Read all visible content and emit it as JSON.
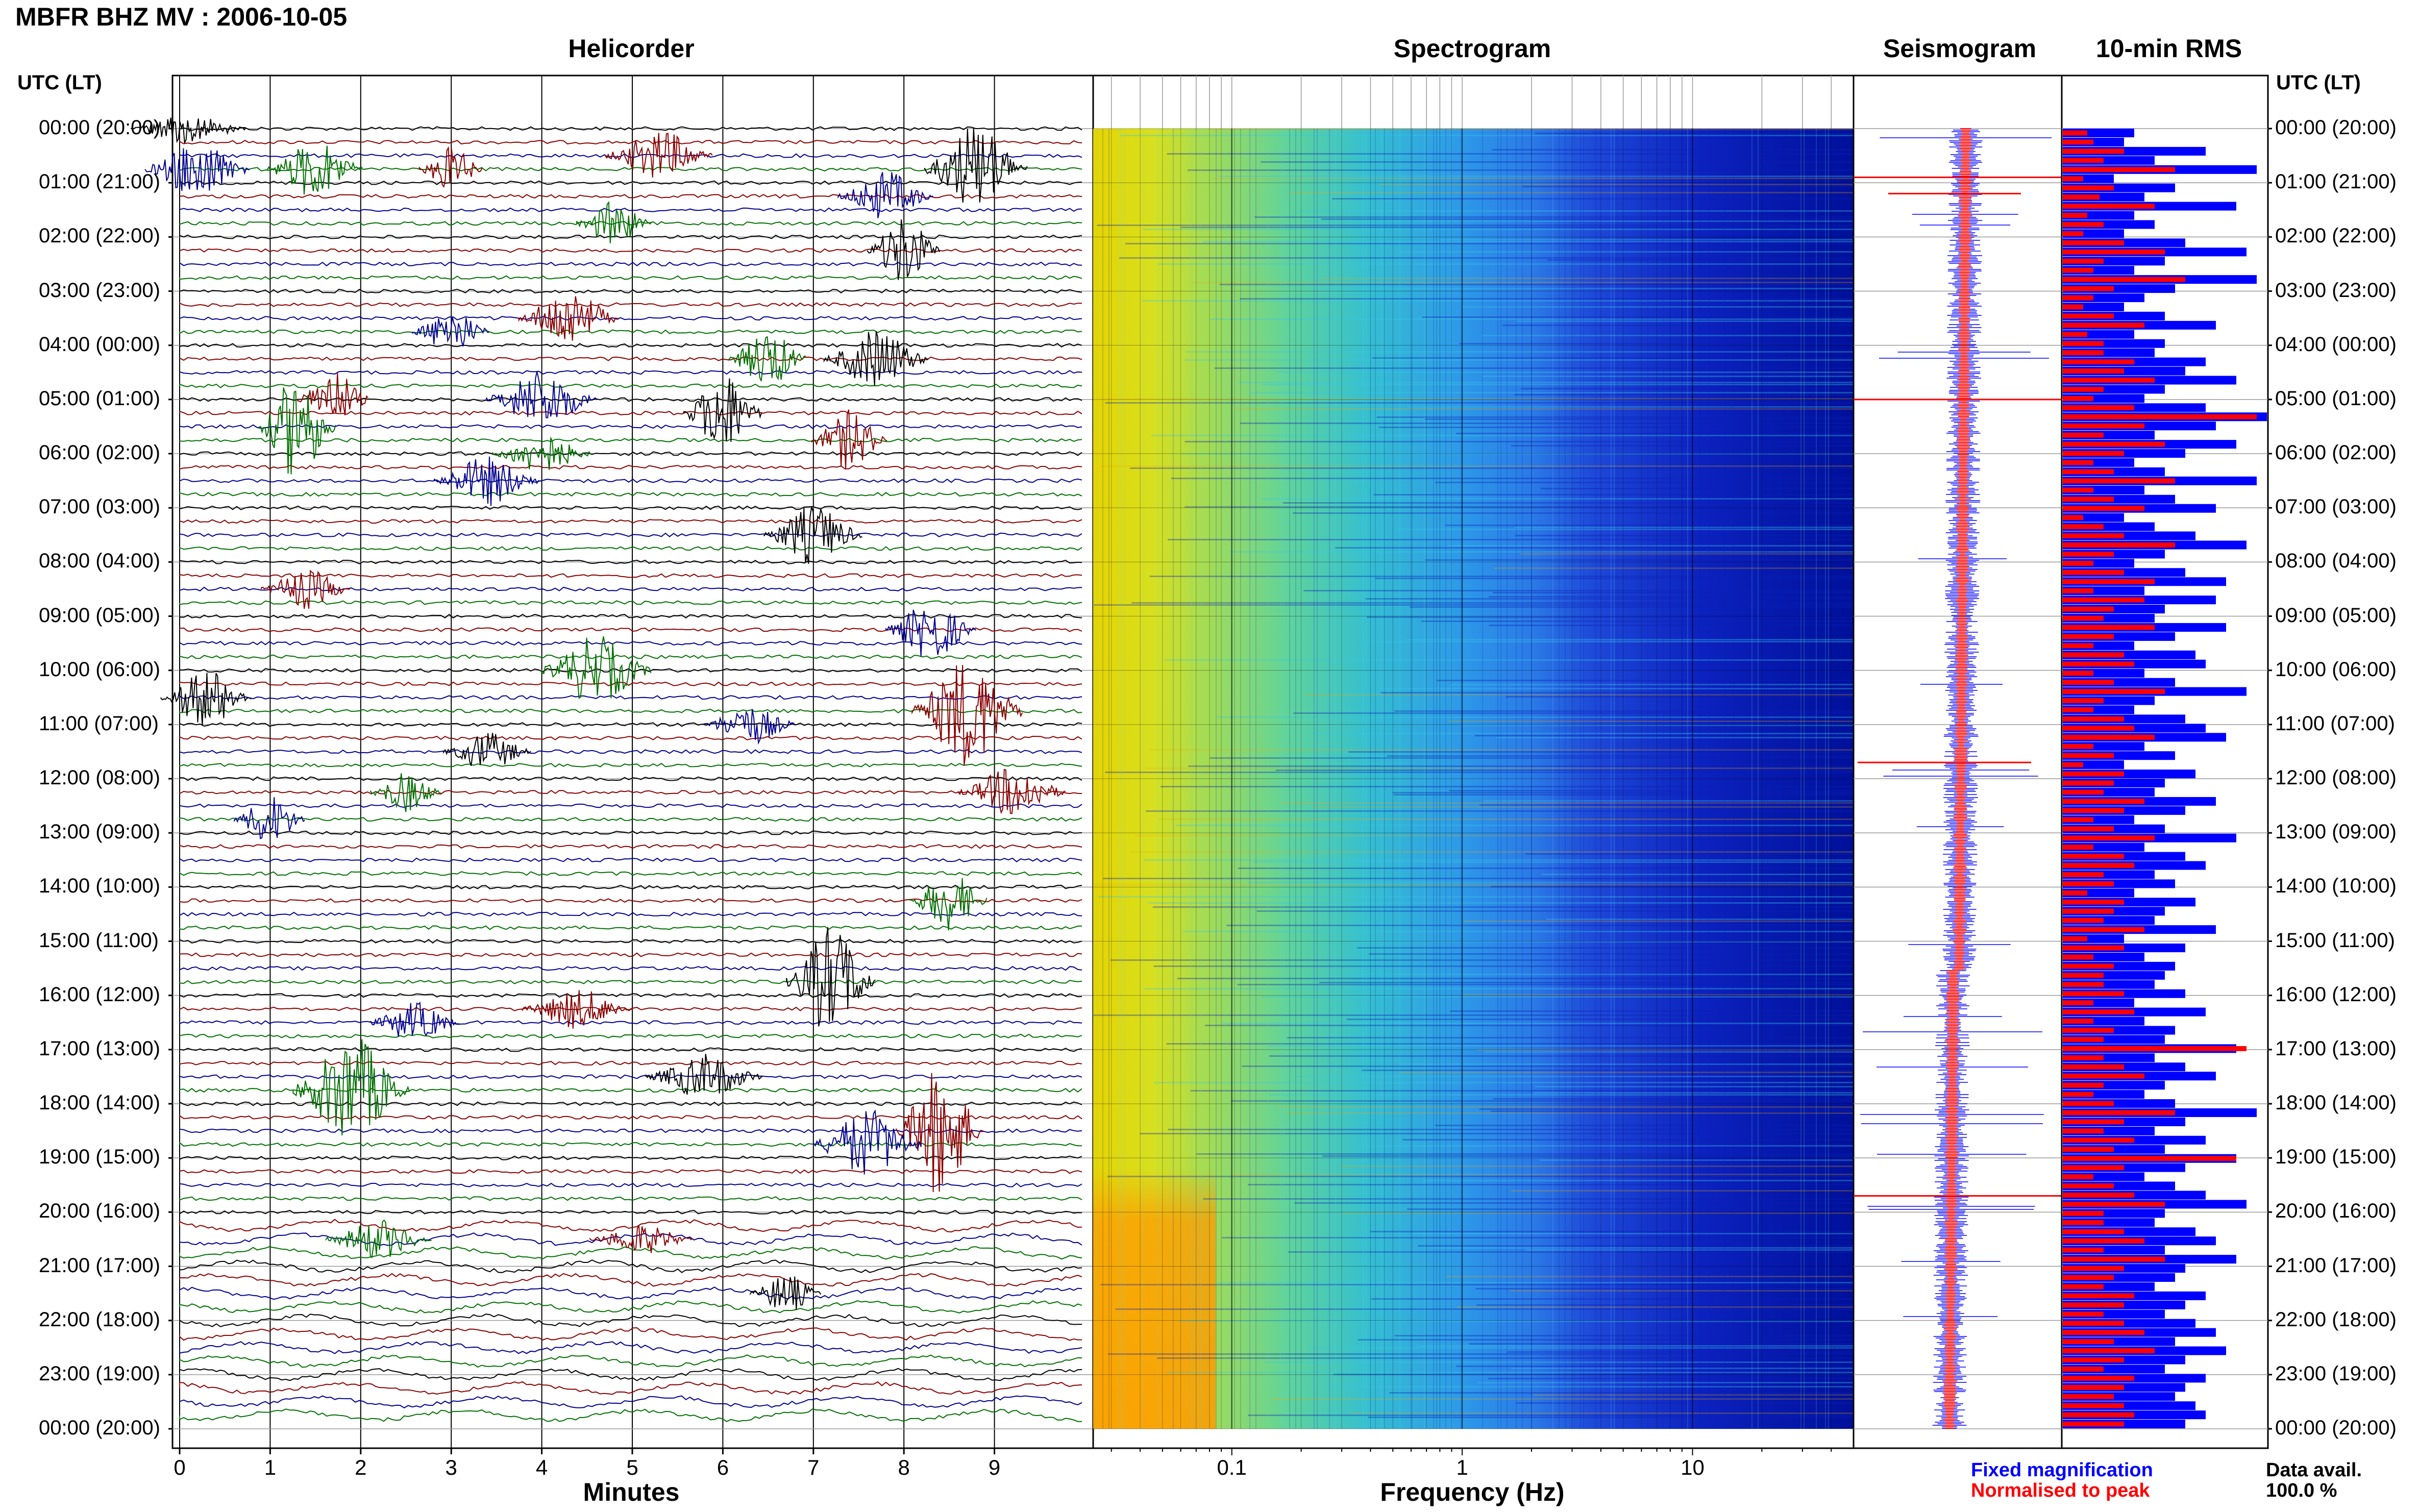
{
  "title": "MBFR BHZ MV : 2006-10-05",
  "panels": {
    "helicorder": "Helicorder",
    "spectrogram": "Spectrogram",
    "seismogram": "Seismogram",
    "rms": "10-min RMS"
  },
  "time_axis_label": "UTC (LT)",
  "time_labels": [
    "00:00 (20:00)",
    "01:00 (21:00)",
    "02:00 (22:00)",
    "03:00 (23:00)",
    "04:00 (00:00)",
    "05:00 (01:00)",
    "06:00 (02:00)",
    "07:00 (03:00)",
    "08:00 (04:00)",
    "09:00 (05:00)",
    "10:00 (06:00)",
    "11:00 (07:00)",
    "12:00 (08:00)",
    "13:00 (09:00)",
    "14:00 (10:00)",
    "15:00 (11:00)",
    "16:00 (12:00)",
    "17:00 (13:00)",
    "18:00 (14:00)",
    "19:00 (15:00)",
    "20:00 (16:00)",
    "21:00 (17:00)",
    "22:00 (18:00)",
    "23:00 (19:00)",
    "00:00 (20:00)"
  ],
  "helicorder_x": {
    "label": "Minutes",
    "ticks": [
      "0",
      "1",
      "2",
      "3",
      "4",
      "5",
      "6",
      "7",
      "8",
      "9"
    ]
  },
  "spectrogram_x": {
    "label": "Frequency (Hz)",
    "ticks": [
      "0.1",
      "1",
      "10"
    ],
    "scale": "log"
  },
  "legend": {
    "fixed": "Fixed magnification",
    "normalised": "Normalised to peak"
  },
  "data_availability": {
    "label": "Data avail.",
    "value": "100.0 %"
  },
  "colors": {
    "trace_cycle": [
      "#000000",
      "#8b0000",
      "#000090",
      "#007000"
    ],
    "fixed": "#0000ff",
    "normalised": "#ff0000",
    "grid": "#9a9a9a"
  },
  "chart_data": {
    "type": "bar",
    "title": "10-min RMS",
    "series": [
      {
        "name": "Fixed magnification",
        "values": [
          0.35,
          0.3,
          0.7,
          0.45,
          0.95,
          0.25,
          0.55,
          0.4,
          0.85,
          0.35,
          0.45,
          0.3,
          0.6,
          0.9,
          0.5,
          0.35,
          0.95,
          0.55,
          0.4,
          0.3,
          0.5,
          0.75,
          0.35,
          0.5,
          0.45,
          0.7,
          0.6,
          0.85,
          0.5,
          0.4,
          0.7,
          1.0,
          0.75,
          0.45,
          0.85,
          0.6,
          0.35,
          0.5,
          0.95,
          0.4,
          0.55,
          0.75,
          0.3,
          0.45,
          0.65,
          0.9,
          0.5,
          0.35,
          0.6,
          0.8,
          0.4,
          0.75,
          0.5,
          0.45,
          0.8,
          0.55,
          0.35,
          0.65,
          0.7,
          0.4,
          0.55,
          0.9,
          0.45,
          0.35,
          0.6,
          0.7,
          0.8,
          0.4,
          0.55,
          0.3,
          0.65,
          0.5,
          0.45,
          0.75,
          0.6,
          0.35,
          0.5,
          0.85,
          0.4,
          0.6,
          0.7,
          0.45,
          0.55,
          0.35,
          0.65,
          0.5,
          0.45,
          0.75,
          0.3,
          0.6,
          0.4,
          0.55,
          0.5,
          0.45,
          0.6,
          0.35,
          0.7,
          0.4,
          0.55,
          0.5,
          0.85,
          0.45,
          0.6,
          0.75,
          0.5,
          0.4,
          0.55,
          0.95,
          0.6,
          0.45,
          0.7,
          0.5,
          0.85,
          0.6,
          0.4,
          0.55,
          0.7,
          0.9,
          0.5,
          0.45,
          0.65,
          0.75,
          0.5,
          0.85,
          0.6,
          0.55,
          0.45,
          0.7,
          0.6,
          0.5,
          0.65,
          0.75,
          0.55,
          0.8,
          0.6,
          0.5,
          0.7,
          0.6,
          0.55,
          0.65,
          0.7,
          0.6
        ],
        "color": "#0000ff"
      },
      {
        "name": "Normalised to peak",
        "values": [
          0.12,
          0.15,
          0.3,
          0.2,
          0.55,
          0.1,
          0.25,
          0.18,
          0.45,
          0.12,
          0.2,
          0.1,
          0.3,
          0.5,
          0.2,
          0.15,
          0.6,
          0.25,
          0.15,
          0.1,
          0.25,
          0.4,
          0.12,
          0.2,
          0.2,
          0.35,
          0.3,
          0.45,
          0.2,
          0.15,
          0.35,
          0.95,
          0.4,
          0.2,
          0.5,
          0.3,
          0.15,
          0.25,
          0.55,
          0.15,
          0.25,
          0.4,
          0.1,
          0.2,
          0.3,
          0.55,
          0.25,
          0.15,
          0.3,
          0.45,
          0.15,
          0.4,
          0.25,
          0.2,
          0.45,
          0.25,
          0.15,
          0.3,
          0.35,
          0.15,
          0.25,
          0.5,
          0.2,
          0.15,
          0.3,
          0.35,
          0.45,
          0.15,
          0.25,
          0.1,
          0.3,
          0.25,
          0.2,
          0.4,
          0.3,
          0.15,
          0.25,
          0.45,
          0.15,
          0.3,
          0.35,
          0.2,
          0.25,
          0.12,
          0.3,
          0.25,
          0.2,
          0.4,
          0.12,
          0.3,
          0.15,
          0.25,
          0.2,
          0.2,
          0.3,
          0.15,
          0.35,
          0.15,
          0.25,
          0.2,
          0.9,
          0.2,
          0.3,
          0.4,
          0.2,
          0.15,
          0.25,
          0.55,
          0.3,
          0.2,
          0.35,
          0.25,
          0.85,
          0.3,
          0.15,
          0.25,
          0.35,
          0.5,
          0.2,
          0.2,
          0.3,
          0.4,
          0.2,
          0.5,
          0.3,
          0.25,
          0.2,
          0.35,
          0.3,
          0.2,
          0.3,
          0.4,
          0.25,
          0.45,
          0.3,
          0.2,
          0.35,
          0.3,
          0.25,
          0.3,
          0.35,
          0.3
        ],
        "color": "#ff0000"
      }
    ]
  }
}
